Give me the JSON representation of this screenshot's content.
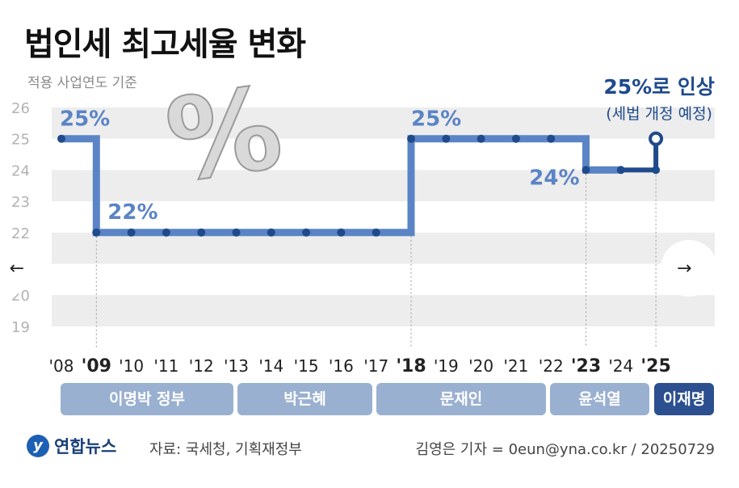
{
  "title": "법인세 최고세율 변화",
  "subtitle": "적용 사업연도 기준",
  "colors": {
    "line": "#5b84c6",
    "line_current": "#1f4a8c",
    "dot": "#1f4a8c",
    "label": "#5b84c6",
    "band": "#ededed"
  },
  "chart_data": {
    "type": "line",
    "step": true,
    "x": [
      "'08",
      "'09",
      "'10",
      "'11",
      "'12",
      "'13",
      "'14",
      "'15",
      "'16",
      "'17",
      "'18",
      "'19",
      "'20",
      "'21",
      "'22",
      "'23",
      "'24",
      "'25"
    ],
    "bold_x": [
      "'09",
      "'18",
      "'23",
      "'25"
    ],
    "values": [
      25,
      22,
      22,
      22,
      22,
      22,
      22,
      22,
      22,
      22,
      25,
      25,
      25,
      25,
      25,
      24,
      24,
      25
    ],
    "ylim": [
      19,
      26
    ],
    "yticks": [
      "19",
      "20",
      "21",
      "22",
      "23",
      "24",
      "25",
      "26"
    ],
    "grid": "alternating-bands",
    "annotations": [
      {
        "x": "'08",
        "text": "25%"
      },
      {
        "x": "'09",
        "text": "22%"
      },
      {
        "x": "'18",
        "text": "25%"
      },
      {
        "x": "'23",
        "text": "24%"
      }
    ],
    "final_label": {
      "main": "25%로 인상",
      "sub": "(세법 개정 예정)"
    }
  },
  "governments": [
    {
      "name": "이명박 정부",
      "from": "'08",
      "to": "'12"
    },
    {
      "name": "박근혜",
      "from": "'13",
      "to": "'16"
    },
    {
      "name": "문재인",
      "from": "'17",
      "to": "'21"
    },
    {
      "name": "윤석열",
      "from": "'22",
      "to": "'24"
    },
    {
      "name": "이재명",
      "from": "'25",
      "to": "'25"
    }
  ],
  "footer": {
    "logo": "연합뉴스",
    "source": "자료: 국세청, 기획재정부",
    "credit": "김영은 기자 = 0eun@yna.co.kr / 20250729"
  },
  "nav": {
    "prev_icon": "arrow-left-icon",
    "next_icon": "arrow-right-icon"
  }
}
